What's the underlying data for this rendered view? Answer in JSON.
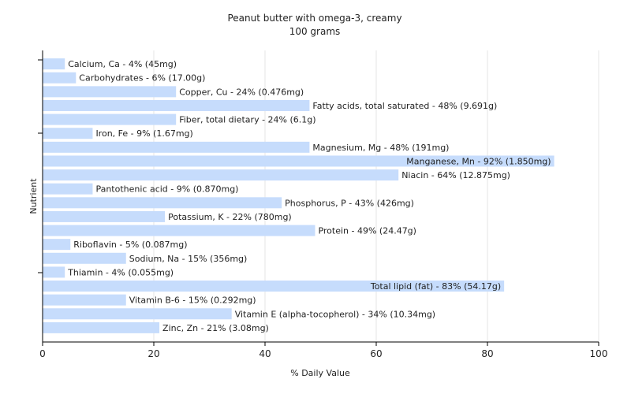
{
  "chart_data": {
    "type": "bar",
    "orientation": "horizontal",
    "title": "Peanut butter with omega-3, creamy",
    "subtitle": "100 grams",
    "xlabel": "% Daily Value",
    "ylabel": "Nutrient",
    "xlim": [
      0,
      100
    ],
    "xticks": [
      "0",
      "20",
      "40",
      "60",
      "80",
      "100"
    ],
    "grid": true,
    "bar_color": "#c6dcfc",
    "categories": [
      "Calcium, Ca",
      "Carbohydrates",
      "Copper, Cu",
      "Fatty acids, total saturated",
      "Fiber, total dietary",
      "Iron, Fe",
      "Magnesium, Mg",
      "Manganese, Mn",
      "Niacin",
      "Pantothenic acid",
      "Phosphorus, P",
      "Potassium, K",
      "Protein",
      "Riboflavin",
      "Sodium, Na",
      "Thiamin",
      "Total lipid (fat)",
      "Vitamin B-6",
      "Vitamin E (alpha-tocopherol)",
      "Zinc, Zn"
    ],
    "values": [
      4,
      6,
      24,
      48,
      24,
      9,
      48,
      92,
      64,
      9,
      43,
      22,
      49,
      5,
      15,
      4,
      83,
      15,
      34,
      21
    ],
    "labels": [
      "Calcium, Ca - 4% (45mg)",
      "Carbohydrates - 6% (17.00g)",
      "Copper, Cu - 24% (0.476mg)",
      "Fatty acids, total saturated - 48% (9.691g)",
      "Fiber, total dietary - 24% (6.1g)",
      "Iron, Fe - 9% (1.67mg)",
      "Magnesium, Mg - 48% (191mg)",
      "Manganese, Mn - 92% (1.850mg)",
      "Niacin - 64% (12.875mg)",
      "Pantothenic acid - 9% (0.870mg)",
      "Phosphorus, P - 43% (426mg)",
      "Potassium, K - 22% (780mg)",
      "Protein - 49% (24.47g)",
      "Riboflavin - 5% (0.087mg)",
      "Sodium, Na - 15% (356mg)",
      "Thiamin - 4% (0.055mg)",
      "Total lipid (fat) - 83% (54.17g)",
      "Vitamin B-6 - 15% (0.292mg)",
      "Vitamin E (alpha-tocopherol) - 34% (10.34mg)",
      "Zinc, Zn - 21% (3.08mg)"
    ]
  }
}
